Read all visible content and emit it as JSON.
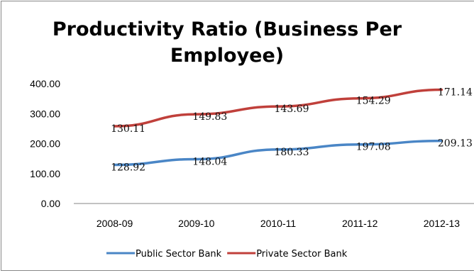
{
  "chart_data": {
    "type": "line",
    "title_lines": [
      "Productivity Ratio (Business Per",
      "Employee)"
    ],
    "categories": [
      "2008-09",
      "2009-10",
      "2010-11",
      "2011-12",
      "2012-13"
    ],
    "y_tick_labels": [
      "400.00",
      "300.00",
      "200.00",
      "100.00",
      "0.00"
    ],
    "ylim": [
      0,
      400
    ],
    "grid": false,
    "legend_position": "bottom",
    "series": [
      {
        "name": "Public Sector Bank",
        "color": "#4a86c6",
        "values": [
          128.92,
          148.04,
          180.33,
          197.08,
          209.13
        ],
        "labels": [
          "128.92",
          "148.04",
          "180.33",
          "197.08",
          "209.13"
        ]
      },
      {
        "name": "Private Sector Bank",
        "color": "#c0403b",
        "values": [
          258,
          298,
          324,
          351,
          380
        ],
        "labels": [
          "130.11",
          "149.83",
          "143.69",
          "154.29",
          "171.14"
        ]
      }
    ]
  }
}
